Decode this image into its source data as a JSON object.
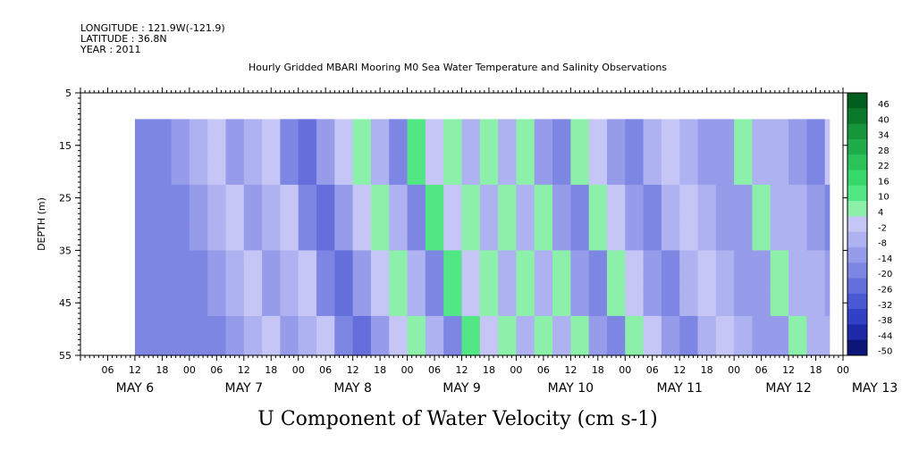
{
  "header": {
    "longitude": "LONGITUDE : 121.9W(-121.9)",
    "latitude": "LATITUDE : 36.8N",
    "year": "YEAR : 2011"
  },
  "chart_data": {
    "type": "heatmap",
    "title": "Hourly Gridded MBARI Mooring M0 Sea Water Temperature and Salinity Observations",
    "xlabel": "U Component of Water Velocity (cm s-1)",
    "ylabel": "DEPTH (m)",
    "y_axis": {
      "range": [
        5,
        55
      ],
      "inverted": true,
      "ticks": [
        "5",
        "15",
        "25",
        "35",
        "45",
        "55"
      ],
      "data_extent": [
        10,
        55
      ]
    },
    "x_axis": {
      "range_hours": [
        0,
        168
      ],
      "data_extent_hours": [
        12,
        165
      ],
      "hour_ticks": [
        "06",
        "12",
        "18",
        "00",
        "06",
        "12",
        "18",
        "00",
        "06",
        "12",
        "18",
        "00",
        "06",
        "12",
        "18",
        "00",
        "06",
        "12",
        "18",
        "00",
        "06",
        "12",
        "18",
        "00",
        "06",
        "12",
        "18",
        "00"
      ],
      "day_labels": [
        "MAY  6",
        "MAY  7",
        "MAY  8",
        "MAY  9",
        "MAY 10",
        "MAY 11",
        "MAY 12",
        "MAY 13"
      ]
    },
    "colorbar": {
      "labels": [
        "46",
        "40",
        "34",
        "28",
        "22",
        "16",
        "10",
        "4",
        "-2",
        "-8",
        "-14",
        "-20",
        "-26",
        "-32",
        "-38",
        "-44",
        "-50"
      ],
      "colors": [
        "#005e1e",
        "#0a7a2a",
        "#16953a",
        "#20ad49",
        "#2bc25a",
        "#36d86c",
        "#52e684",
        "#8cf0aa",
        "#c6c6f6",
        "#aeb2f0",
        "#969cea",
        "#7d86e3",
        "#646fdc",
        "#4b58d4",
        "#3240c6",
        "#1e2aa8",
        "#0c1678"
      ],
      "min": -50,
      "max": 52
    },
    "profile_by_hour": [
      {
        "hour": 12,
        "value": -14
      },
      {
        "hour": 16,
        "value": -16
      },
      {
        "hour": 20,
        "value": -10
      },
      {
        "hour": 24,
        "value": -4
      },
      {
        "hour": 28,
        "value": 2
      },
      {
        "hour": 32,
        "value": -12
      },
      {
        "hour": 36,
        "value": -6
      },
      {
        "hour": 40,
        "value": 3
      },
      {
        "hour": 44,
        "value": -18
      },
      {
        "hour": 48,
        "value": -22
      },
      {
        "hour": 52,
        "value": -8
      },
      {
        "hour": 56,
        "value": 2
      },
      {
        "hour": 60,
        "value": 8
      },
      {
        "hour": 64,
        "value": -6
      },
      {
        "hour": 68,
        "value": -16
      },
      {
        "hour": 72,
        "value": 12
      },
      {
        "hour": 76,
        "value": 4
      },
      {
        "hour": 80,
        "value": 10
      },
      {
        "hour": 84,
        "value": -4
      },
      {
        "hour": 88,
        "value": 10
      },
      {
        "hour": 92,
        "value": -6
      },
      {
        "hour": 96,
        "value": 8
      },
      {
        "hour": 100,
        "value": -10
      },
      {
        "hour": 104,
        "value": -18
      },
      {
        "hour": 108,
        "value": 6
      },
      {
        "hour": 112,
        "value": 2
      },
      {
        "hour": 116,
        "value": -10
      },
      {
        "hour": 120,
        "value": -16
      },
      {
        "hour": 124,
        "value": -4
      },
      {
        "hour": 128,
        "value": 4
      },
      {
        "hour": 132,
        "value": -2
      },
      {
        "hour": 136,
        "value": -8
      },
      {
        "hour": 140,
        "value": -12
      },
      {
        "hour": 144,
        "value": 6
      },
      {
        "hour": 148,
        "value": -2
      },
      {
        "hour": 152,
        "value": -6
      },
      {
        "hour": 156,
        "value": -10
      },
      {
        "hour": 160,
        "value": -14
      },
      {
        "hour": 164,
        "value": 4
      }
    ]
  }
}
